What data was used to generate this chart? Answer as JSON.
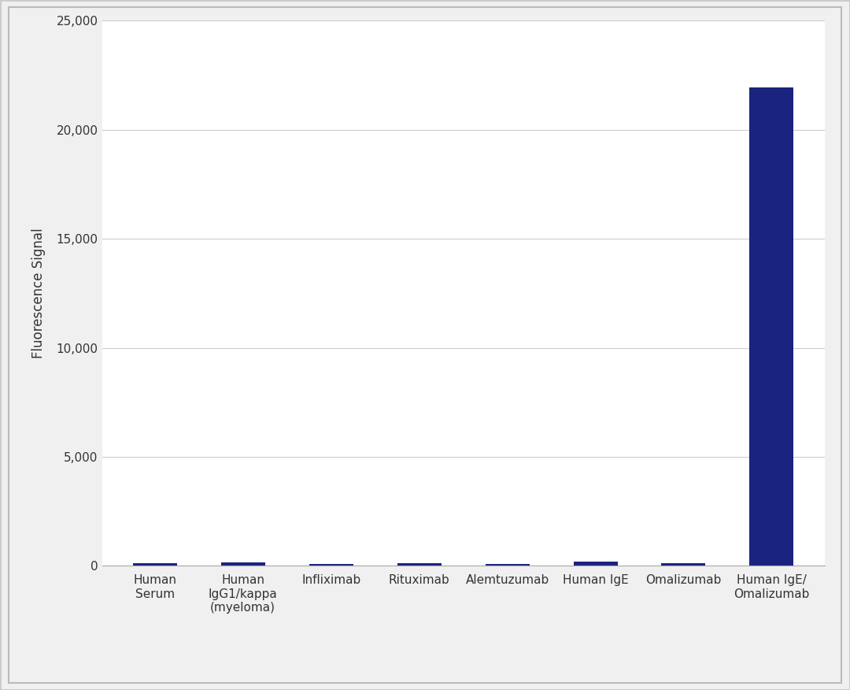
{
  "categories": [
    "Human\nSerum",
    "Human\nIgG1/kappa\n(myeloma)",
    "Infliximab",
    "Rituximab",
    "Alemtuzumab",
    "Human IgE",
    "Omalizumab",
    "Human IgE/\nOmalizumab"
  ],
  "values": [
    130,
    150,
    80,
    120,
    100,
    200,
    130,
    21950
  ],
  "bar_color": "#1a237e",
  "ylabel": "Fluorescence Signal",
  "ylim": [
    0,
    25000
  ],
  "yticks": [
    0,
    5000,
    10000,
    15000,
    20000,
    25000
  ],
  "ytick_labels": [
    "0",
    "5,000",
    "10,000",
    "15,000",
    "20,000",
    "25,000"
  ],
  "background_color": "#ffffff",
  "plot_bg_color": "#ffffff",
  "grid_color": "#cccccc",
  "border_color": "#cccccc",
  "bar_width": 0.5,
  "figsize": [
    10.8,
    8.76
  ],
  "dpi": 100,
  "ylabel_fontsize": 12,
  "tick_fontsize": 11,
  "outer_border": true
}
